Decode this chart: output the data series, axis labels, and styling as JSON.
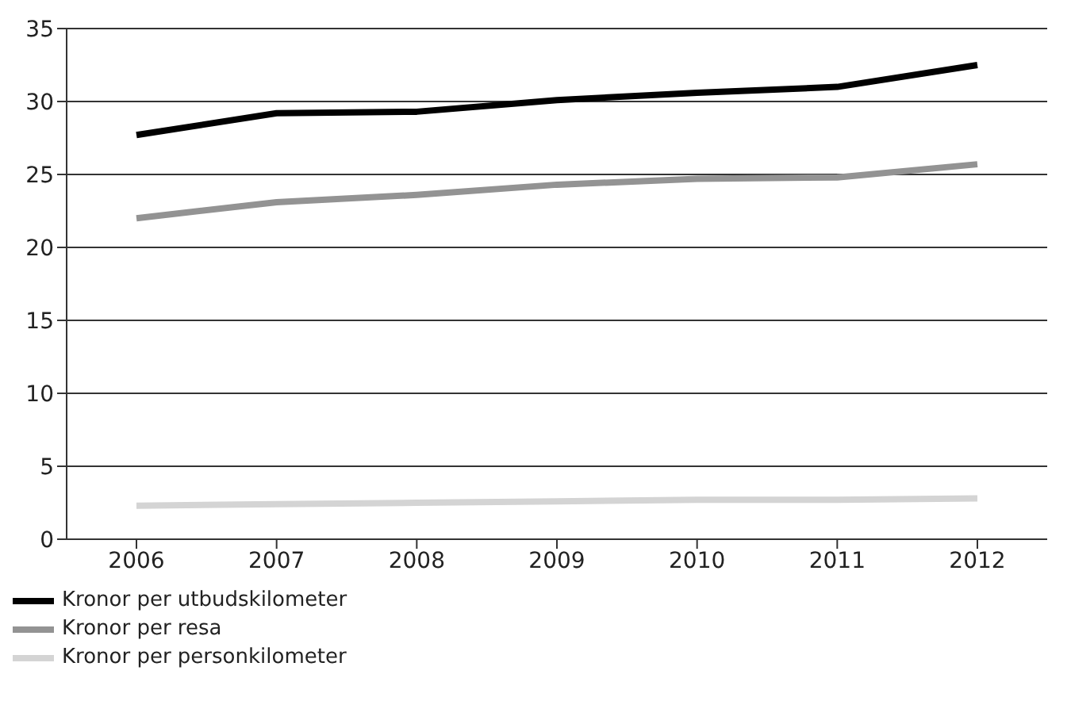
{
  "chart_data": {
    "type": "line",
    "categories": [
      "2006",
      "2007",
      "2008",
      "2009",
      "2010",
      "2011",
      "2012"
    ],
    "series": [
      {
        "name": "Kronor per utbudskilometer",
        "color": "#000000",
        "values": [
          27.7,
          29.2,
          29.3,
          30.1,
          30.6,
          31.0,
          32.5
        ]
      },
      {
        "name": "Kronor per resa",
        "color": "#939393",
        "values": [
          22.0,
          23.1,
          23.6,
          24.3,
          24.7,
          24.8,
          25.7
        ]
      },
      {
        "name": "Kronor per personkilometer",
        "color": "#d4d4d4",
        "values": [
          2.3,
          2.4,
          2.5,
          2.6,
          2.7,
          2.7,
          2.8
        ]
      }
    ],
    "ylim": [
      0,
      35
    ],
    "yticks": [
      0,
      5,
      10,
      15,
      20,
      25,
      30,
      35
    ],
    "grid": "y",
    "legend": "bottom left",
    "marker": "none",
    "line_style": "solid"
  }
}
